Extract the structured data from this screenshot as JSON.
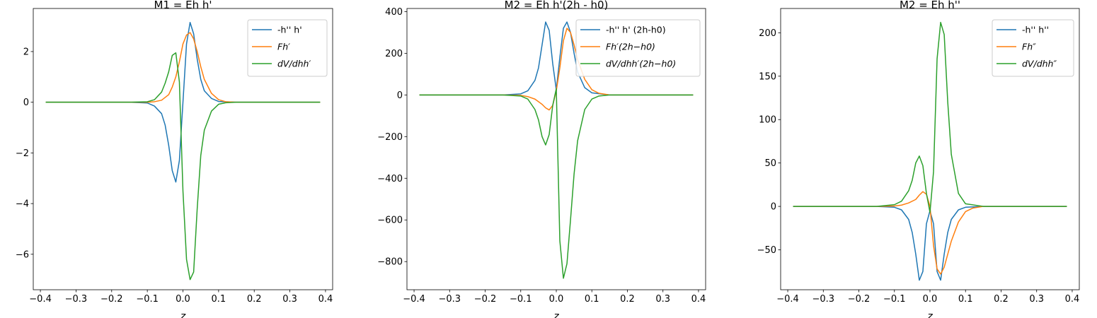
{
  "chart_data": [
    {
      "type": "line",
      "title": "M1 = Eh h'",
      "xlabel": "z",
      "ylabel": "",
      "xlim": [
        -0.42,
        0.42
      ],
      "ylim": [
        -7.4,
        3.7
      ],
      "xticks": [
        -0.4,
        -0.3,
        -0.2,
        -0.1,
        0.0,
        0.1,
        0.2,
        0.3,
        0.4
      ],
      "xtick_labels": [
        "−0.4",
        "−0.3",
        "−0.2",
        "−0.1",
        "0.0",
        "0.1",
        "0.2",
        "0.3",
        "0.4"
      ],
      "yticks": [
        2,
        0,
        -2,
        -4,
        -6
      ],
      "ytick_labels": [
        "2",
        "0",
        "−2",
        "−4",
        "−6"
      ],
      "grid": false,
      "legend": "top-right",
      "series": [
        {
          "name": "-h'' h'",
          "legend_label": "-h'' h'",
          "color": "#1f77b4",
          "x": [
            -0.385,
            -0.15,
            -0.1,
            -0.08,
            -0.06,
            -0.05,
            -0.04,
            -0.03,
            -0.02,
            -0.01,
            0.0,
            0.01,
            0.02,
            0.03,
            0.04,
            0.05,
            0.06,
            0.08,
            0.1,
            0.15,
            0.385
          ],
          "y": [
            0,
            0,
            -0.03,
            -0.15,
            -0.45,
            -0.9,
            -1.7,
            -2.7,
            -3.15,
            -2.3,
            0.0,
            2.3,
            3.15,
            2.7,
            1.7,
            0.9,
            0.45,
            0.15,
            0.03,
            0,
            0
          ]
        },
        {
          "name": "Fh'",
          "legend_label": "Fh′",
          "color": "#ff7f0e",
          "x": [
            -0.385,
            -0.15,
            -0.1,
            -0.08,
            -0.06,
            -0.04,
            -0.03,
            -0.02,
            -0.01,
            0.0,
            0.01,
            0.02,
            0.03,
            0.04,
            0.05,
            0.06,
            0.08,
            0.1,
            0.12,
            0.15,
            0.385
          ],
          "y": [
            0,
            0,
            0.0,
            0.02,
            0.08,
            0.3,
            0.6,
            1.0,
            1.6,
            2.3,
            2.65,
            2.75,
            2.5,
            2.0,
            1.4,
            0.9,
            0.35,
            0.1,
            0.02,
            0,
            0
          ]
        },
        {
          "name": "dV/dhh'",
          "legend_label": "dV/dhh′",
          "color": "#2ca02c",
          "x": [
            -0.385,
            -0.15,
            -0.1,
            -0.08,
            -0.06,
            -0.05,
            -0.04,
            -0.03,
            -0.02,
            -0.01,
            0.0,
            0.01,
            0.02,
            0.03,
            0.04,
            0.05,
            0.06,
            0.08,
            0.1,
            0.12,
            0.15,
            0.385
          ],
          "y": [
            0,
            0,
            0.02,
            0.1,
            0.4,
            0.75,
            1.2,
            1.85,
            1.95,
            0.8,
            -3.5,
            -6.2,
            -7.0,
            -6.7,
            -4.2,
            -2.1,
            -1.1,
            -0.35,
            -0.08,
            -0.02,
            0,
            0
          ]
        }
      ]
    },
    {
      "type": "line",
      "title": "M2 = Eh h'(2h - h0)",
      "xlabel": "z",
      "ylabel": "",
      "xlim": [
        -0.42,
        0.42
      ],
      "ylim": [
        -935,
        415
      ],
      "xticks": [
        -0.4,
        -0.3,
        -0.2,
        -0.1,
        0.0,
        0.1,
        0.2,
        0.3,
        0.4
      ],
      "xtick_labels": [
        "−0.4",
        "−0.3",
        "−0.2",
        "−0.1",
        "0.0",
        "0.1",
        "0.2",
        "0.3",
        "0.4"
      ],
      "yticks": [
        400,
        200,
        0,
        -200,
        -400,
        -600,
        -800
      ],
      "ytick_labels": [
        "400",
        "200",
        "0",
        "−200",
        "−400",
        "−600",
        "−800"
      ],
      "grid": false,
      "legend": "top-right",
      "series": [
        {
          "name": "-h'' h' (2h-h0)",
          "legend_label": "-h'' h' (2h-h0)",
          "color": "#1f77b4",
          "x": [
            -0.385,
            -0.15,
            -0.1,
            -0.08,
            -0.06,
            -0.05,
            -0.04,
            -0.03,
            -0.02,
            -0.01,
            0.0,
            0.01,
            0.02,
            0.03,
            0.04,
            0.05,
            0.06,
            0.08,
            0.1,
            0.15,
            0.385
          ],
          "y": [
            0,
            0,
            5,
            20,
            70,
            130,
            240,
            350,
            310,
            150,
            25,
            180,
            320,
            350,
            300,
            200,
            110,
            35,
            10,
            0,
            0
          ]
        },
        {
          "name": "Fh'(2h-h0)",
          "legend_label": "Fh′(2h−h0)",
          "color": "#ff7f0e",
          "x": [
            -0.385,
            -0.15,
            -0.1,
            -0.08,
            -0.06,
            -0.04,
            -0.03,
            -0.02,
            -0.01,
            0.0,
            0.01,
            0.02,
            0.03,
            0.04,
            0.05,
            0.06,
            0.08,
            0.1,
            0.12,
            0.15,
            0.385
          ],
          "y": [
            0,
            0,
            -2,
            -8,
            -20,
            -45,
            -62,
            -72,
            -50,
            20,
            130,
            260,
            320,
            300,
            240,
            170,
            75,
            25,
            8,
            0,
            0
          ]
        },
        {
          "name": "dV/dhh'(2h-h0)",
          "legend_label": "dV/dhh′(2h−h0)",
          "color": "#2ca02c",
          "x": [
            -0.385,
            -0.15,
            -0.1,
            -0.08,
            -0.06,
            -0.05,
            -0.04,
            -0.03,
            -0.02,
            -0.01,
            0.0,
            0.01,
            0.02,
            0.03,
            0.04,
            0.05,
            0.06,
            0.08,
            0.1,
            0.12,
            0.15,
            0.385
          ],
          "y": [
            0,
            0,
            -5,
            -20,
            -70,
            -120,
            -200,
            -240,
            -190,
            -50,
            30,
            -700,
            -880,
            -810,
            -600,
            -380,
            -220,
            -70,
            -20,
            -5,
            0,
            0
          ]
        }
      ]
    },
    {
      "type": "line",
      "title": "M2 = Eh h''",
      "xlabel": "z",
      "ylabel": "",
      "xlim": [
        -0.42,
        0.42
      ],
      "ylim": [
        -96,
        228
      ],
      "xticks": [
        -0.4,
        -0.3,
        -0.2,
        -0.1,
        0.0,
        0.1,
        0.2,
        0.3,
        0.4
      ],
      "xtick_labels": [
        "−0.4",
        "−0.3",
        "−0.2",
        "−0.1",
        "0.0",
        "0.1",
        "0.2",
        "0.3",
        "0.4"
      ],
      "yticks": [
        200,
        150,
        100,
        50,
        0,
        -50
      ],
      "ytick_labels": [
        "200",
        "150",
        "100",
        "50",
        "0",
        "−50"
      ],
      "grid": false,
      "legend": "top-right",
      "series": [
        {
          "name": "-h'' h''",
          "legend_label": "-h'' h''",
          "color": "#1f77b4",
          "x": [
            -0.385,
            -0.15,
            -0.1,
            -0.08,
            -0.06,
            -0.05,
            -0.04,
            -0.03,
            -0.02,
            -0.01,
            0.0,
            0.01,
            0.02,
            0.03,
            0.04,
            0.05,
            0.06,
            0.08,
            0.1,
            0.15,
            0.385
          ],
          "y": [
            0,
            0,
            -1,
            -4,
            -15,
            -30,
            -55,
            -85,
            -75,
            -20,
            -5,
            -20,
            -75,
            -85,
            -55,
            -30,
            -15,
            -4,
            -1,
            0,
            0
          ]
        },
        {
          "name": "Fh''",
          "legend_label": "Fh″",
          "color": "#ff7f0e",
          "x": [
            -0.385,
            -0.15,
            -0.1,
            -0.08,
            -0.06,
            -0.04,
            -0.03,
            -0.02,
            -0.01,
            0.0,
            0.01,
            0.02,
            0.03,
            0.04,
            0.05,
            0.06,
            0.08,
            0.1,
            0.12,
            0.15,
            0.385
          ],
          "y": [
            0,
            0,
            0.5,
            1.5,
            4,
            8,
            13,
            17,
            14,
            0,
            -45,
            -72,
            -78,
            -70,
            -55,
            -40,
            -18,
            -6,
            -2,
            0,
            0
          ]
        },
        {
          "name": "dV/dhh''",
          "legend_label": "dV/dhh″",
          "color": "#2ca02c",
          "x": [
            -0.385,
            -0.15,
            -0.1,
            -0.08,
            -0.06,
            -0.05,
            -0.04,
            -0.03,
            -0.02,
            -0.01,
            0.0,
            0.01,
            0.02,
            0.03,
            0.04,
            0.05,
            0.06,
            0.08,
            0.1,
            0.15,
            0.385
          ],
          "y": [
            0,
            0,
            2,
            6,
            18,
            30,
            50,
            58,
            47,
            15,
            -7,
            40,
            170,
            212,
            198,
            120,
            60,
            15,
            3,
            0,
            0
          ]
        }
      ]
    }
  ]
}
